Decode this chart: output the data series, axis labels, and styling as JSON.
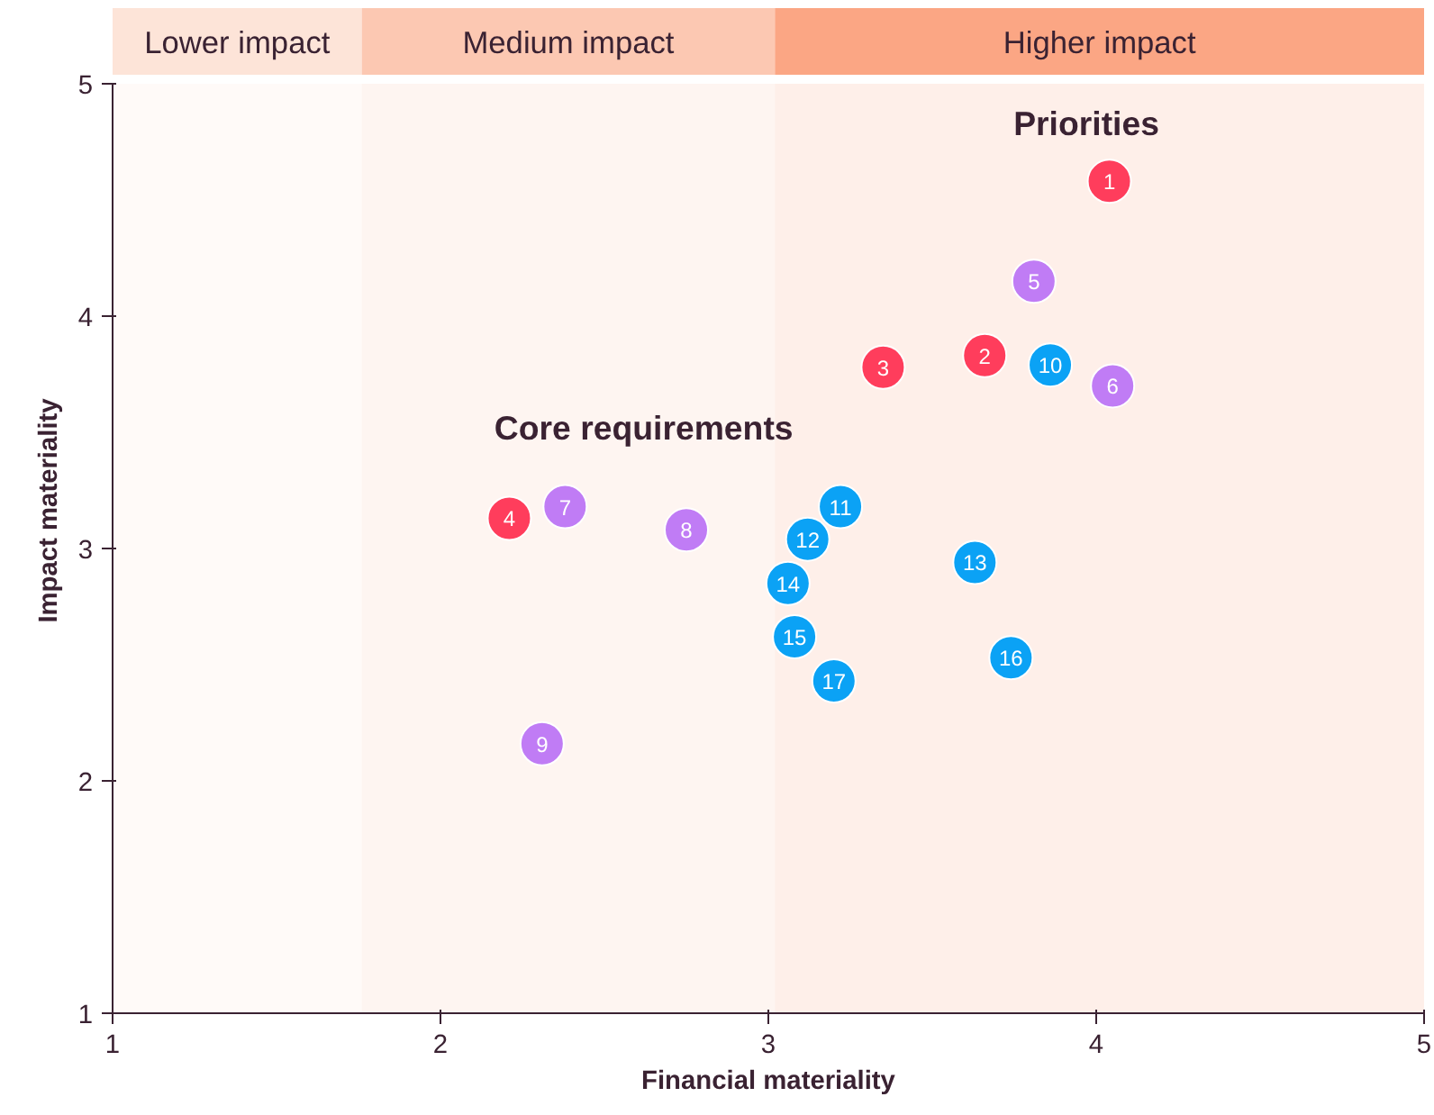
{
  "chart_data": {
    "type": "scatter",
    "xlabel": "Financial materiality",
    "ylabel": "Impact materiality",
    "xlim": [
      1,
      5
    ],
    "ylim": [
      1,
      5
    ],
    "xticks": [
      1,
      2,
      3,
      4,
      5
    ],
    "yticks": [
      1,
      2,
      3,
      4,
      5
    ],
    "marker": "circle",
    "series": [
      {
        "color": "#ff3d5c",
        "x": [
          4.04,
          3.66,
          3.35,
          2.21
        ],
        "values": [
          4.58,
          3.83,
          3.78,
          3.13
        ]
      },
      {
        "color": "#c07cf5",
        "x": [
          3.81,
          4.05,
          2.38,
          2.75,
          2.31
        ],
        "values": [
          4.15,
          3.7,
          3.18,
          3.08,
          2.16
        ]
      },
      {
        "color": "#0ba2f5",
        "x": [
          3.86,
          3.22,
          3.12,
          3.63,
          3.06,
          3.08,
          3.74,
          3.2
        ],
        "values": [
          3.79,
          3.18,
          3.04,
          2.94,
          2.85,
          2.62,
          2.53,
          2.43
        ]
      }
    ],
    "bands": [
      {
        "axis": "x",
        "from": 1,
        "to": 1.76,
        "label": "Lower impact",
        "color": "#fde4d8"
      },
      {
        "axis": "x",
        "from": 1.76,
        "to": 3.02,
        "label": "Medium impact",
        "color": "#fcc8b2"
      },
      {
        "axis": "x",
        "from": 3.02,
        "to": 5,
        "label": "Higher impact",
        "color": "#fba684"
      }
    ],
    "annotations": [
      "Priorities",
      "Core requirements",
      {
        "text": "1",
        "x": 4.04,
        "y": 4.58
      },
      {
        "text": "2",
        "x": 3.66,
        "y": 3.83
      },
      {
        "text": "3",
        "x": 3.35,
        "y": 3.78
      },
      {
        "text": "4",
        "x": 2.21,
        "y": 3.13
      },
      {
        "text": "5",
        "x": 3.81,
        "y": 4.15
      },
      {
        "text": "6",
        "x": 4.05,
        "y": 3.7
      },
      {
        "text": "7",
        "x": 2.38,
        "y": 3.18
      },
      {
        "text": "8",
        "x": 2.75,
        "y": 3.08
      },
      {
        "text": "9",
        "x": 2.31,
        "y": 2.16
      },
      {
        "text": "10",
        "x": 3.86,
        "y": 3.79
      },
      {
        "text": "11",
        "x": 3.22,
        "y": 3.18
      },
      {
        "text": "12",
        "x": 3.12,
        "y": 3.04
      },
      {
        "text": "13",
        "x": 3.63,
        "y": 2.94
      },
      {
        "text": "14",
        "x": 3.06,
        "y": 2.85
      },
      {
        "text": "15",
        "x": 3.08,
        "y": 2.62
      },
      {
        "text": "16",
        "x": 3.74,
        "y": 2.53
      },
      {
        "text": "17",
        "x": 3.2,
        "y": 2.43
      }
    ]
  }
}
